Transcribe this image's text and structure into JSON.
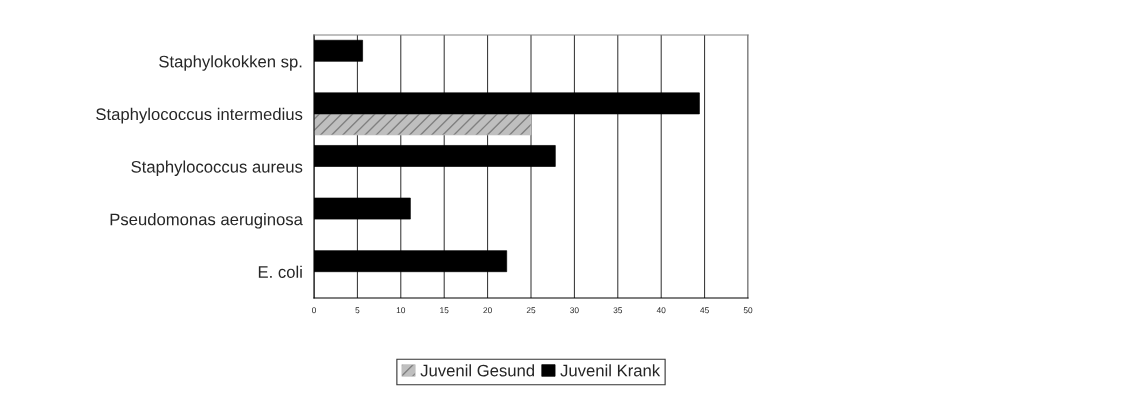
{
  "chart_data": {
    "type": "bar",
    "orientation": "horizontal",
    "categories": [
      "Staphylokokken sp.",
      "Staphylococcus intermedius",
      "Staphylococcus aureus",
      "Pseudomonas aeruginosa",
      "E. coli"
    ],
    "series": [
      {
        "name": "Juvenil Gesund",
        "color": "#bfbfbf",
        "values": [
          null,
          25,
          null,
          null,
          null
        ]
      },
      {
        "name": "Juvenil Krank",
        "color": "#000000",
        "values": [
          5.6,
          44.4,
          27.8,
          11.1,
          22.2
        ]
      }
    ],
    "xlim": [
      0,
      50
    ],
    "xticks": [
      0,
      5,
      10,
      15,
      20,
      25,
      30,
      35,
      40,
      45,
      50
    ],
    "grid": "x",
    "legend": "bottom"
  }
}
